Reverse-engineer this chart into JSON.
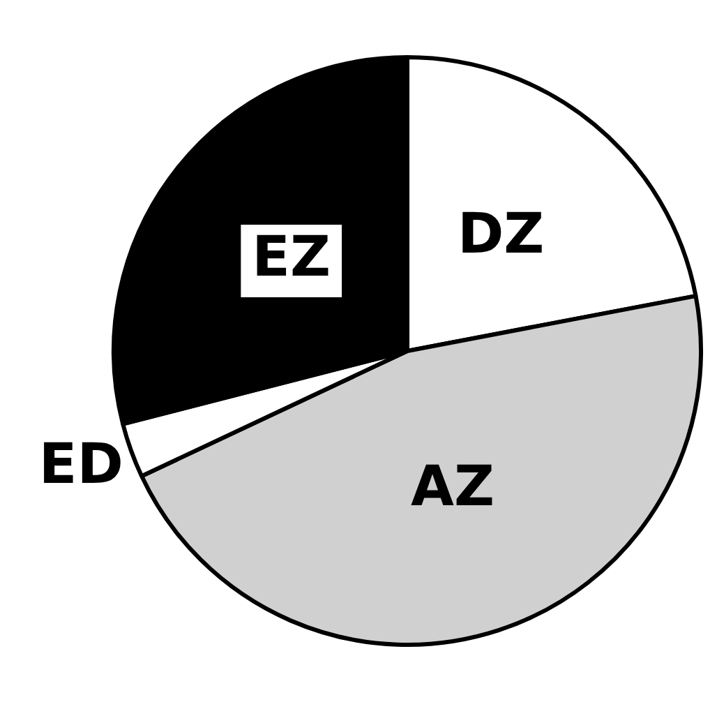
{
  "chart_data": {
    "type": "pie",
    "categories": [
      "DZ",
      "AZ",
      "ED",
      "EZ"
    ],
    "values": [
      22,
      46,
      3,
      29
    ],
    "colors": [
      "#ffffff",
      "#d0d0d0",
      "#ffffff",
      "#000000"
    ]
  }
}
